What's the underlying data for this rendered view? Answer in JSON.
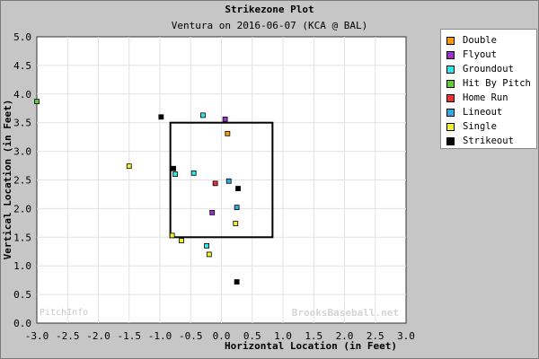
{
  "chart_data": {
    "type": "scatter",
    "title": "Strikezone Plot",
    "subtitle": "Ventura on 2016-06-07 (KCA @ BAL)",
    "xlabel": "Horizontal Location (in Feet)",
    "ylabel": "Vertical Location (in Feet)",
    "xlim": [
      -3.0,
      3.0
    ],
    "ylim": [
      0.0,
      5.0
    ],
    "x_ticks": [
      "-3.0",
      "-2.5",
      "-2.0",
      "-1.5",
      "-1.0",
      "-0.5",
      "0.0",
      "0.5",
      "1.0",
      "1.5",
      "2.0",
      "2.5",
      "3.0"
    ],
    "y_ticks": [
      "0.0",
      "0.5",
      "1.0",
      "1.5",
      "2.0",
      "2.5",
      "3.0",
      "3.5",
      "4.0",
      "4.5",
      "5.0"
    ],
    "grid": true,
    "legend_position": "right",
    "strike_zone": {
      "x": [
        -0.83,
        0.83
      ],
      "y": [
        1.5,
        3.5
      ]
    },
    "series": [
      {
        "name": "Double",
        "color": "#ff9900",
        "points": [
          [
            0.1,
            3.31
          ]
        ]
      },
      {
        "name": "Flyout",
        "color": "#9933cc",
        "points": [
          [
            0.06,
            3.56
          ],
          [
            -0.15,
            1.93
          ]
        ]
      },
      {
        "name": "Groundout",
        "color": "#33e6e6",
        "points": [
          [
            -0.3,
            3.63
          ],
          [
            -0.75,
            2.6
          ],
          [
            -0.45,
            2.62
          ],
          [
            -0.24,
            1.35
          ]
        ]
      },
      {
        "name": "Hit By Pitch",
        "color": "#66cc33",
        "points": [
          [
            -3.0,
            3.87
          ]
        ]
      },
      {
        "name": "Home Run",
        "color": "#e63333",
        "points": [
          [
            -0.1,
            2.44
          ]
        ]
      },
      {
        "name": "Lineout",
        "color": "#33aadd",
        "points": [
          [
            0.12,
            2.48
          ],
          [
            0.25,
            2.02
          ]
        ]
      },
      {
        "name": "Single",
        "color": "#eeee33",
        "points": [
          [
            -1.5,
            2.74
          ],
          [
            -0.8,
            1.53
          ],
          [
            -0.65,
            1.44
          ],
          [
            0.23,
            1.74
          ],
          [
            -0.2,
            1.2
          ]
        ]
      },
      {
        "name": "Strikeout",
        "color": "#000000",
        "points": [
          [
            -0.98,
            3.6
          ],
          [
            -0.78,
            2.7
          ],
          [
            0.27,
            2.35
          ],
          [
            0.25,
            0.72
          ]
        ]
      }
    ]
  },
  "watermark_left": "PitchInfo",
  "watermark_right": "BrooksBaseball.net"
}
